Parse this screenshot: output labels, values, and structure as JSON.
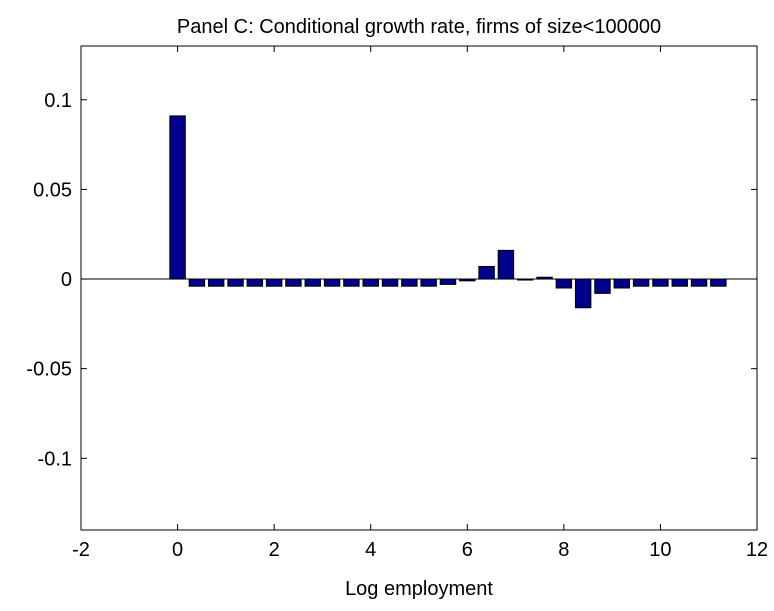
{
  "chart_data": {
    "type": "bar",
    "title": "Panel C: Conditional growth rate, firms of size<100000",
    "xlabel": "Log employment",
    "ylabel": "",
    "xlim": [
      -2,
      12
    ],
    "ylim": [
      -0.14,
      0.13
    ],
    "xticks": [
      -2,
      0,
      2,
      4,
      6,
      8,
      10,
      12
    ],
    "xtick_labels": [
      "-2",
      "0",
      "2",
      "4",
      "6",
      "8",
      "10",
      "12"
    ],
    "yticks": [
      -0.1,
      -0.05,
      0,
      0.05,
      0.1
    ],
    "ytick_labels": [
      "-0.1",
      "-0.05",
      "0",
      "0.05",
      "0.1"
    ],
    "grid": false,
    "bar_color": "#00008b",
    "bar_width": 0.32,
    "x": [
      0.0,
      0.4,
      0.8,
      1.2,
      1.6,
      2.0,
      2.4,
      2.8,
      3.2,
      3.6,
      4.0,
      4.4,
      4.8,
      5.2,
      5.6,
      6.0,
      6.4,
      6.8,
      7.2,
      7.6,
      8.0,
      8.4,
      8.8,
      9.2,
      9.6,
      10.0,
      10.4,
      10.8,
      11.2
    ],
    "values": [
      0.091,
      -0.004,
      -0.004,
      -0.004,
      -0.004,
      -0.004,
      -0.004,
      -0.004,
      -0.004,
      -0.004,
      -0.004,
      -0.004,
      -0.004,
      -0.004,
      -0.003,
      -0.001,
      0.007,
      0.016,
      0.0,
      0.001,
      -0.005,
      -0.016,
      -0.008,
      -0.005,
      -0.004,
      -0.004,
      -0.004,
      -0.004,
      -0.004
    ]
  }
}
